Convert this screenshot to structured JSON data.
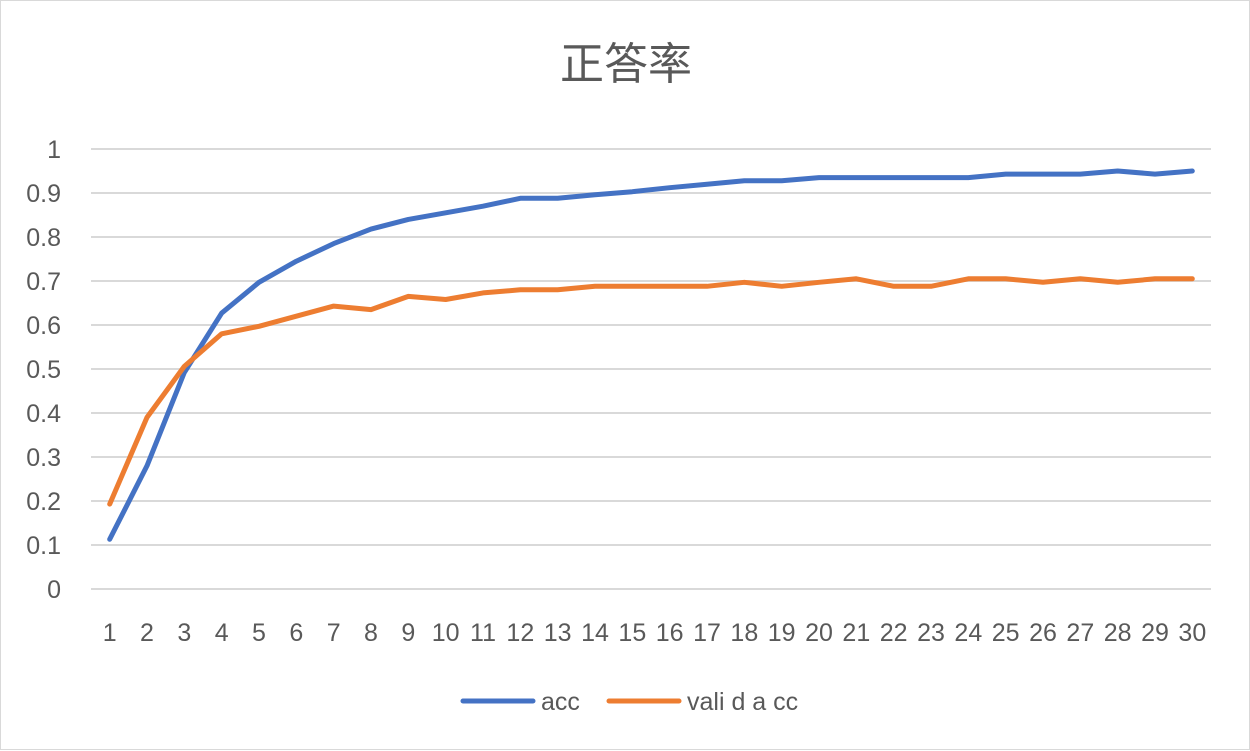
{
  "chart_data": {
    "type": "line",
    "title": "正答率",
    "xlabel": "",
    "ylabel": "",
    "x": [
      1,
      2,
      3,
      4,
      5,
      6,
      7,
      8,
      9,
      10,
      11,
      12,
      13,
      14,
      15,
      16,
      17,
      18,
      19,
      20,
      21,
      22,
      23,
      24,
      25,
      26,
      27,
      28,
      29,
      30
    ],
    "ylim": [
      0,
      1
    ],
    "yticks": [
      "0",
      "0.1",
      "0.2",
      "0.3",
      "0.4",
      "0.5",
      "0.6",
      "0.7",
      "0.8",
      "0.9",
      "1"
    ],
    "grid": true,
    "legend": "bottom",
    "series": [
      {
        "name": "acc",
        "color": "#4472c4",
        "values": [
          0.113,
          0.28,
          0.492,
          0.627,
          0.697,
          0.745,
          0.785,
          0.818,
          0.84,
          0.855,
          0.87,
          0.888,
          0.888,
          0.896,
          0.903,
          0.912,
          0.92,
          0.928,
          0.928,
          0.935,
          0.935,
          0.935,
          0.935,
          0.935,
          0.943,
          0.943,
          0.943,
          0.95,
          0.943,
          0.95
        ]
      },
      {
        "name": "vali d a cc",
        "color": "#ed7d31",
        "values": [
          0.193,
          0.39,
          0.506,
          0.58,
          0.597,
          0.62,
          0.643,
          0.635,
          0.665,
          0.658,
          0.673,
          0.68,
          0.68,
          0.688,
          0.688,
          0.688,
          0.688,
          0.697,
          0.688,
          0.697,
          0.705,
          0.688,
          0.688,
          0.705,
          0.705,
          0.697,
          0.705,
          0.697,
          0.705,
          0.705
        ]
      }
    ]
  }
}
